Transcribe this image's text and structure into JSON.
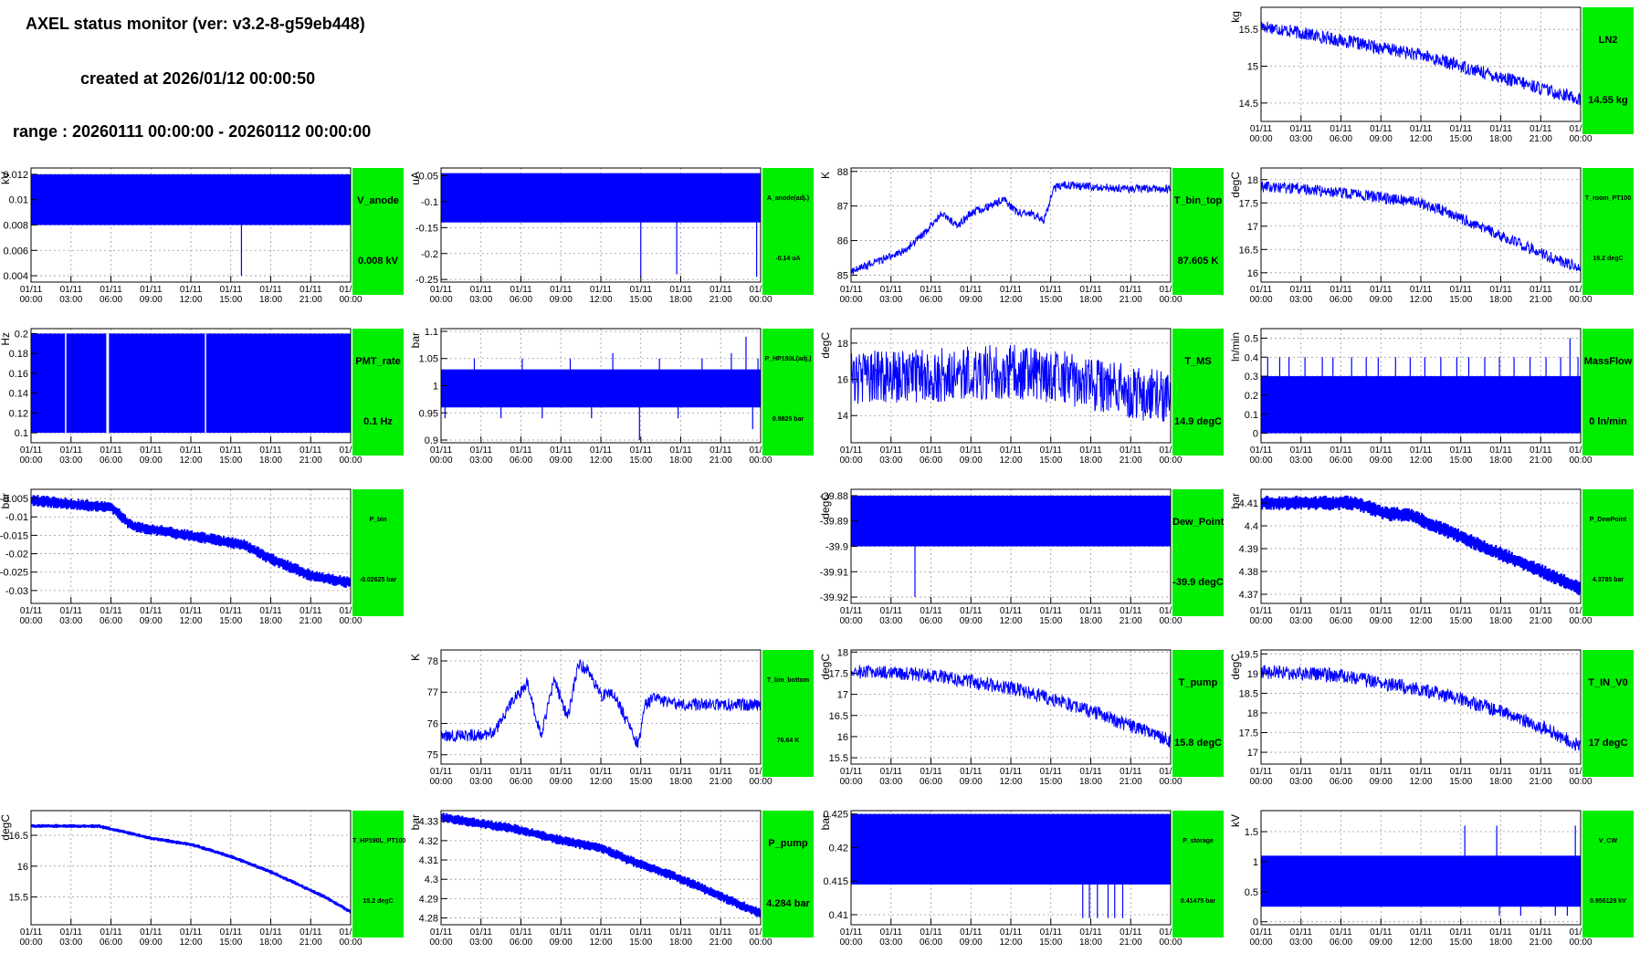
{
  "header": {
    "title": "AXEL status monitor (ver: v3.2-8-g59eb448)",
    "created": "created at 2026/01/12 00:00:50",
    "range": "range : 20260111 00:00:00 - 20260112 00:00:00"
  },
  "colors": {
    "data": "#0000ff",
    "badge": "#00ee00",
    "grid": "#999999"
  },
  "x_ticks": [
    "01/11 00:00",
    "01/11 03:00",
    "01/11 06:00",
    "01/11 09:00",
    "01/11 12:00",
    "01/11 15:00",
    "01/11 18:00",
    "01/11 21:00",
    "01/12 00:00"
  ],
  "chart_data": [
    {
      "id": "LN2",
      "type": "line",
      "name": "LN2",
      "value": "14.55 kg",
      "ylabel": "kg",
      "ylim": [
        14.25,
        15.8
      ],
      "yticks": [
        "14.5",
        "15",
        "15.5"
      ],
      "ytick_values": [
        14.5,
        15,
        15.5
      ],
      "badge_size": "big",
      "style": "noisy",
      "x": [
        0,
        3,
        6,
        9,
        12,
        15,
        18,
        21,
        24
      ],
      "y": [
        15.55,
        15.45,
        15.35,
        15.25,
        15.15,
        15.0,
        14.85,
        14.7,
        14.55
      ],
      "spread": 0.09
    },
    {
      "id": "V_anode",
      "type": "line",
      "name": "V_anode",
      "value": "0.008 kV",
      "ylabel": "kV",
      "ylim": [
        0.0035,
        0.0125
      ],
      "yticks": [
        "0.004",
        "0.006",
        "0.008",
        "0.01",
        "0.012"
      ],
      "ytick_values": [
        0.004,
        0.006,
        0.008,
        0.01,
        0.012
      ],
      "badge_size": "big",
      "style": "band",
      "x": [
        0,
        24
      ],
      "y": [
        0.01,
        0.01
      ],
      "band": [
        0.008,
        0.012
      ],
      "spikes": [
        [
          15.8,
          0.004
        ]
      ]
    },
    {
      "id": "A_anode",
      "type": "line",
      "name": "A_anode(adj.)",
      "value": "-0.14 uA",
      "ylabel": "uA",
      "ylim": [
        -0.255,
        -0.035
      ],
      "yticks": [
        "-0.25",
        "-0.2",
        "-0.15",
        "-0.1",
        "-0.05"
      ],
      "ytick_values": [
        -0.25,
        -0.2,
        -0.15,
        -0.1,
        -0.05
      ],
      "badge_size": "small",
      "style": "band",
      "x": [
        0,
        24
      ],
      "y": [
        -0.1,
        -0.1
      ],
      "band": [
        -0.14,
        -0.045
      ],
      "spikes": [
        [
          15,
          -0.245
        ],
        [
          17.7,
          -0.24
        ],
        [
          23.7,
          -0.245
        ]
      ]
    },
    {
      "id": "T_bin_top",
      "type": "line",
      "name": "T_bin_top",
      "value": "87.605 K",
      "ylabel": "K",
      "ylim": [
        84.8,
        88.1
      ],
      "yticks": [
        "85",
        "86",
        "87",
        "88"
      ],
      "ytick_values": [
        85,
        86,
        87,
        88
      ],
      "badge_size": "big",
      "style": "noisy",
      "x": [
        0,
        2,
        4,
        5.5,
        6.8,
        8,
        9,
        10.5,
        11.5,
        12.5,
        13.5,
        14.5,
        15.2,
        16,
        18,
        21,
        24
      ],
      "y": [
        85.1,
        85.4,
        85.7,
        86.2,
        86.8,
        86.4,
        86.8,
        87.0,
        87.2,
        86.8,
        86.8,
        86.6,
        87.5,
        87.6,
        87.55,
        87.5,
        87.5
      ],
      "spread": 0.12
    },
    {
      "id": "T_room_PT100",
      "type": "line",
      "name": "T_room_PT100",
      "value": "16.2 degC",
      "ylabel": "degC",
      "ylim": [
        15.8,
        18.25
      ],
      "yticks": [
        "16",
        "16.5",
        "17",
        "17.5",
        "18"
      ],
      "ytick_values": [
        16,
        16.5,
        17,
        17.5,
        18
      ],
      "badge_size": "small",
      "style": "noisy",
      "x": [
        0,
        3,
        6,
        9,
        12,
        14,
        16,
        18,
        20,
        22,
        24
      ],
      "y": [
        17.85,
        17.8,
        17.72,
        17.62,
        17.5,
        17.3,
        17.05,
        16.8,
        16.55,
        16.3,
        16.1
      ],
      "spread": 0.12
    },
    {
      "id": "PMT_rate",
      "type": "line",
      "name": "PMT_rate",
      "value": "0.1 Hz",
      "ylabel": "Hz",
      "ylim": [
        0.09,
        0.205
      ],
      "yticks": [
        "0.1",
        "0.12",
        "0.14",
        "0.16",
        "0.18",
        "0.2"
      ],
      "ytick_values": [
        0.1,
        0.12,
        0.14,
        0.16,
        0.18,
        0.2
      ],
      "badge_size": "big",
      "style": "band",
      "x": [
        0,
        24
      ],
      "y": [
        0.15,
        0.15
      ],
      "band": [
        0.1,
        0.2
      ],
      "gaps": [
        2.6,
        5.7,
        5.8,
        13.1
      ]
    },
    {
      "id": "P_HP190L",
      "type": "line",
      "name": "P_HP190L(adj.)",
      "value": "0.9825 bar",
      "ylabel": "bar",
      "ylim": [
        0.895,
        1.105
      ],
      "yticks": [
        "0.9",
        "0.95",
        "1",
        "1.05",
        "1.1"
      ],
      "ytick_values": [
        0.9,
        0.95,
        1,
        1.05,
        1.1
      ],
      "badge_size": "small",
      "style": "band",
      "x": [
        0,
        24
      ],
      "y": [
        0.99,
        0.99
      ],
      "band": [
        0.96,
        1.03
      ],
      "spikes": [
        [
          0.3,
          0.94
        ],
        [
          2.5,
          1.05
        ],
        [
          4.5,
          0.94
        ],
        [
          6.1,
          1.05
        ],
        [
          7.6,
          0.94
        ],
        [
          9.7,
          1.05
        ],
        [
          11.3,
          0.94
        ],
        [
          12.9,
          1.06
        ],
        [
          14.9,
          0.9
        ],
        [
          16.4,
          1.05
        ],
        [
          17.8,
          0.94
        ],
        [
          19.6,
          1.05
        ],
        [
          21.8,
          1.06
        ],
        [
          22.9,
          1.09
        ],
        [
          23.4,
          0.92
        ],
        [
          23.8,
          1.05
        ]
      ]
    },
    {
      "id": "T_MS",
      "type": "line",
      "name": "T_MS",
      "value": "14.9 degC",
      "ylabel": "degC",
      "ylim": [
        12.5,
        18.8
      ],
      "yticks": [
        "14",
        "16",
        "18"
      ],
      "ytick_values": [
        14,
        16,
        18
      ],
      "badge_size": "big",
      "style": "noisy",
      "x": [
        0,
        3,
        6,
        9,
        12,
        15,
        18,
        21,
        24
      ],
      "y": [
        16.1,
        16.15,
        16.2,
        16.35,
        16.45,
        16.2,
        15.8,
        15.3,
        14.9
      ],
      "spread": 1.5
    },
    {
      "id": "MassFlow",
      "type": "line",
      "name": "MassFlow",
      "value": "0 ln/min",
      "ylabel": "ln/min",
      "ylim": [
        -0.05,
        0.55
      ],
      "yticks": [
        "0",
        "0.1",
        "0.2",
        "0.3",
        "0.4",
        "0.5"
      ],
      "ytick_values": [
        0,
        0.1,
        0.2,
        0.3,
        0.4,
        0.5
      ],
      "badge_size": "big",
      "style": "band",
      "x": [
        0,
        24
      ],
      "y": [
        0.15,
        0.15
      ],
      "band": [
        0.0,
        0.3
      ],
      "spikes": [
        [
          0.5,
          0.4
        ],
        [
          1.4,
          0.4
        ],
        [
          2.1,
          0.4
        ],
        [
          3.3,
          0.4
        ],
        [
          4.6,
          0.4
        ],
        [
          5.4,
          0.4
        ],
        [
          6.8,
          0.4
        ],
        [
          7.9,
          0.4
        ],
        [
          8.8,
          0.4
        ],
        [
          10.1,
          0.4
        ],
        [
          11.2,
          0.4
        ],
        [
          12.3,
          0.4
        ],
        [
          13.5,
          0.4
        ],
        [
          14.7,
          0.4
        ],
        [
          15.6,
          0.4
        ],
        [
          16.8,
          0.4
        ],
        [
          17.9,
          0.4
        ],
        [
          19.0,
          0.4
        ],
        [
          20.2,
          0.4
        ],
        [
          21.4,
          0.4
        ],
        [
          22.5,
          0.4
        ],
        [
          23.2,
          0.5
        ],
        [
          23.8,
          0.4
        ]
      ]
    },
    {
      "id": "P_bin",
      "type": "line",
      "name": "P_bin",
      "value": "-0.02625 bar",
      "ylabel": "bar",
      "ylim": [
        -0.0335,
        -0.0025
      ],
      "yticks": [
        "-0.03",
        "-0.025",
        "-0.02",
        "-0.015",
        "-0.01",
        "-0.005"
      ],
      "ytick_values": [
        -0.03,
        -0.025,
        -0.02,
        -0.015,
        -0.01,
        -0.005
      ],
      "badge_size": "small",
      "style": "steps",
      "x": [
        0,
        6,
        7.5,
        15.8,
        18,
        21,
        24
      ],
      "y": [
        -0.0055,
        -0.0075,
        -0.0125,
        -0.0175,
        -0.0215,
        -0.026,
        -0.028
      ],
      "spread": 0.0025
    },
    {
      "id": "Dew_Point",
      "type": "line",
      "name": "Dew_Point",
      "value": "-39.9 degC",
      "ylabel": "degC",
      "ylim": [
        -39.9225,
        -39.8775
      ],
      "yticks": [
        "-39.88",
        "-39.89",
        "-39.9",
        "-39.91",
        "-39.92"
      ],
      "ytick_values": [
        -39.88,
        -39.89,
        -39.9,
        -39.91,
        -39.92
      ],
      "badge_size": "big",
      "style": "band",
      "x": [
        0,
        24
      ],
      "y": [
        -39.89,
        -39.89
      ],
      "band": [
        -39.9,
        -39.88
      ],
      "spikes": [
        [
          4.8,
          -39.92
        ]
      ]
    },
    {
      "id": "P_DewPoint",
      "type": "line",
      "name": "P_DewPoint",
      "value": "4.3785 bar",
      "ylabel": "bar",
      "ylim": [
        4.366,
        4.416
      ],
      "yticks": [
        "4.37",
        "4.38",
        "4.39",
        "4.4",
        "4.41"
      ],
      "ytick_values": [
        4.37,
        4.38,
        4.39,
        4.4,
        4.41
      ],
      "badge_size": "small",
      "style": "steps",
      "x": [
        0,
        7,
        9.5,
        11,
        13,
        15,
        17,
        19,
        21,
        23,
        24
      ],
      "y": [
        4.41,
        4.41,
        4.405,
        4.405,
        4.4,
        4.395,
        4.39,
        4.385,
        4.38,
        4.375,
        4.372
      ],
      "spread": 0.005
    },
    {
      "id": "T_bin_bottom",
      "type": "line",
      "name": "T_bin_bottom",
      "value": "76.64 K",
      "ylabel": "K",
      "ylim": [
        74.7,
        78.35
      ],
      "yticks": [
        "75",
        "76",
        "77",
        "78"
      ],
      "ytick_values": [
        75,
        76,
        77,
        78
      ],
      "badge_size": "small",
      "style": "noisy",
      "x": [
        0,
        2,
        4,
        5,
        6.5,
        7.5,
        8.5,
        9.5,
        10.3,
        11,
        12,
        13,
        14,
        14.8,
        15.3,
        16,
        18,
        21,
        24
      ],
      "y": [
        75.6,
        75.6,
        75.7,
        76.5,
        77.3,
        75.6,
        77.4,
        76.2,
        77.9,
        77.7,
        76.9,
        77.0,
        76.0,
        75.3,
        76.6,
        76.8,
        76.6,
        76.6,
        76.6
      ],
      "spread": 0.2
    },
    {
      "id": "T_pump",
      "type": "line",
      "name": "T_pump",
      "value": "15.8 degC",
      "ylabel": "degC",
      "ylim": [
        15.35,
        18.05
      ],
      "yticks": [
        "15.5",
        "16",
        "16.5",
        "17",
        "17.5",
        "18"
      ],
      "ytick_values": [
        15.5,
        16,
        16.5,
        17,
        17.5,
        18
      ],
      "badge_size": "big",
      "style": "noisy",
      "x": [
        0,
        3,
        6,
        9,
        12,
        15,
        18,
        21,
        24
      ],
      "y": [
        17.55,
        17.5,
        17.45,
        17.3,
        17.15,
        16.9,
        16.6,
        16.25,
        15.9
      ],
      "spread": 0.17
    },
    {
      "id": "T_IN_V0",
      "type": "line",
      "name": "T_IN_V0",
      "value": "17 degC",
      "ylabel": "degC",
      "ylim": [
        16.7,
        19.6
      ],
      "yticks": [
        "17",
        "17.5",
        "18",
        "18.5",
        "19",
        "19.5"
      ],
      "ytick_values": [
        17,
        17.5,
        18,
        18.5,
        19,
        19.5
      ],
      "badge_size": "big",
      "style": "noisy",
      "x": [
        0,
        3,
        6,
        9,
        12,
        15,
        18,
        21,
        24
      ],
      "y": [
        19.05,
        19.0,
        18.95,
        18.75,
        18.6,
        18.35,
        18.05,
        17.65,
        17.15
      ],
      "spread": 0.18
    },
    {
      "id": "T_HP190L_PT100",
      "type": "line",
      "name": "T_HP190L_PT100",
      "value": "15.2 degC",
      "ylabel": "degC",
      "ylim": [
        15.05,
        16.9
      ],
      "yticks": [
        "15.5",
        "16",
        "16.5"
      ],
      "ytick_values": [
        15.5,
        16,
        16.5
      ],
      "badge_size": "small",
      "style": "steps",
      "x": [
        0,
        5,
        7,
        9,
        12,
        15,
        18,
        20,
        22,
        24
      ],
      "y": [
        16.65,
        16.65,
        16.55,
        16.45,
        16.35,
        16.15,
        15.9,
        15.7,
        15.5,
        15.25
      ],
      "spread": 0.05
    },
    {
      "id": "P_pump",
      "type": "line",
      "name": "P_pump",
      "value": "4.284 bar",
      "ylabel": "bar",
      "ylim": [
        4.2765,
        4.3355
      ],
      "yticks": [
        "4.28",
        "4.29",
        "4.3",
        "4.31",
        "4.32",
        "4.33"
      ],
      "ytick_values": [
        4.28,
        4.29,
        4.3,
        4.31,
        4.32,
        4.33
      ],
      "badge_size": "big",
      "style": "steps",
      "x": [
        0,
        5.5,
        9,
        12,
        14,
        16,
        18,
        20,
        22,
        24
      ],
      "y": [
        4.332,
        4.326,
        4.32,
        4.316,
        4.31,
        4.305,
        4.3,
        4.294,
        4.288,
        4.282
      ],
      "spread": 0.004
    },
    {
      "id": "P_storage",
      "type": "line",
      "name": "P_storage",
      "value": "0.41475 bar",
      "ylabel": "bar",
      "ylim": [
        0.4085,
        0.4255
      ],
      "yticks": [
        "0.41",
        "0.415",
        "0.42",
        "0.425"
      ],
      "ytick_values": [
        0.41,
        0.415,
        0.42,
        0.425
      ],
      "badge_size": "small",
      "style": "band",
      "x": [
        0,
        24
      ],
      "y": [
        0.4175,
        0.4175
      ],
      "band": [
        0.4145,
        0.425
      ],
      "spikes": [
        [
          17.4,
          0.4095
        ],
        [
          17.9,
          0.4095
        ],
        [
          18.5,
          0.4095
        ],
        [
          19.3,
          0.4095
        ],
        [
          19.8,
          0.4095
        ],
        [
          20.4,
          0.4095
        ],
        [
          17.6,
          0.425
        ],
        [
          18.2,
          0.425
        ],
        [
          21.1,
          0.425
        ]
      ]
    },
    {
      "id": "V_CW",
      "type": "line",
      "name": "V_CW",
      "value": "0.956129 kV",
      "ylabel": "kV",
      "ylim": [
        -0.05,
        1.85
      ],
      "yticks": [
        "0",
        "0.5",
        "1",
        "1.5"
      ],
      "ytick_values": [
        0,
        0.5,
        1,
        1.5
      ],
      "badge_size": "small",
      "style": "band",
      "x": [
        0,
        24
      ],
      "y": [
        0.6,
        0.6
      ],
      "band": [
        0.25,
        1.1
      ],
      "spikes": [
        [
          15.3,
          1.6
        ],
        [
          17.7,
          1.6
        ],
        [
          23.6,
          1.6
        ],
        [
          17.9,
          0.1
        ],
        [
          19.5,
          0.1
        ],
        [
          22.1,
          0.1
        ],
        [
          23.0,
          0.1
        ]
      ]
    }
  ]
}
